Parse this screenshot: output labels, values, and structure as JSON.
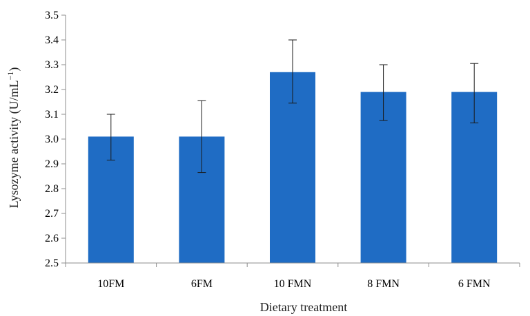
{
  "chart_data": {
    "type": "bar",
    "categories": [
      "10FM",
      "6FM",
      "10 FMN",
      "8 FMN",
      "6 FMN"
    ],
    "values": [
      3.01,
      3.01,
      3.27,
      3.19,
      3.19
    ],
    "error_bars": {
      "upper": [
        3.1,
        3.155,
        3.4,
        3.3,
        3.305
      ],
      "lower": [
        2.915,
        2.865,
        3.145,
        3.075,
        3.065
      ]
    },
    "xlabel": "Dietary treatment",
    "ylabel_main": "Lysozyme activity (U/mL",
    "ylabel_sup": "−1",
    "ylabel_end": ")",
    "ylim": [
      2.5,
      3.5
    ],
    "yticks": [
      "2.5",
      "2.6",
      "2.7",
      "2.8",
      "2.9",
      "3.0",
      "3.1",
      "3.2",
      "3.3",
      "3.4",
      "3.5"
    ],
    "bar_color": "#1f6cc4",
    "grid": false
  }
}
